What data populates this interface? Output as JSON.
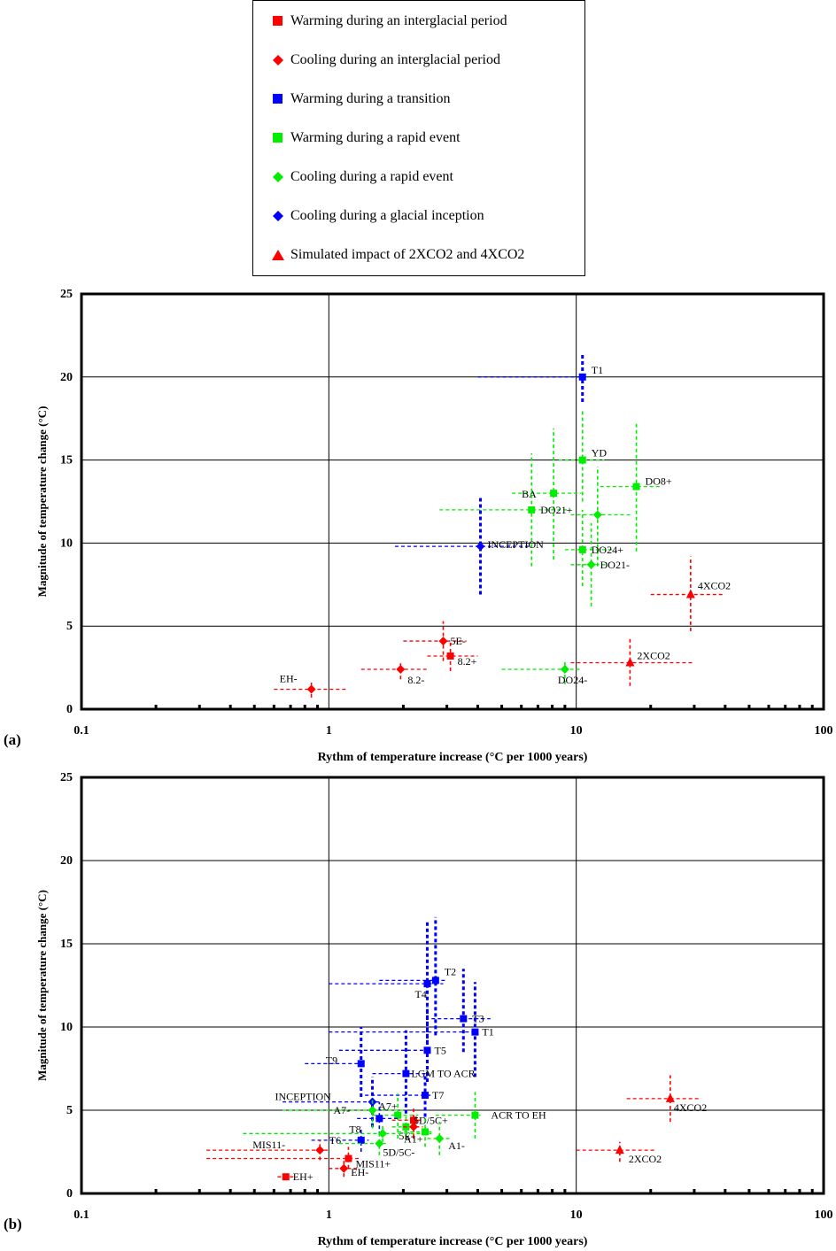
{
  "legend": {
    "items": [
      {
        "label": "Warming during an interglacial period",
        "marker": "square",
        "color": "#ff0000"
      },
      {
        "label": "Cooling during an interglacial period",
        "marker": "diamond",
        "color": "#ff0000"
      },
      {
        "label": "Warming during a transition",
        "marker": "square",
        "color": "#0000ff"
      },
      {
        "label": "Warming during a rapid event",
        "marker": "square",
        "color": "#00ee00"
      },
      {
        "label": "Cooling during a rapid event",
        "marker": "diamond",
        "color": "#00ee00"
      },
      {
        "label": "Cooling during a glacial inception",
        "marker": "diamond",
        "color": "#0000ff"
      },
      {
        "label": "Simulated impact of 2XCO2 and 4XCO2",
        "marker": "triangle",
        "color": "#ff0000"
      }
    ]
  },
  "colors": {
    "red": "#ff0000",
    "blue": "#0000ff",
    "green": "#00ee00"
  },
  "chart_data": [
    {
      "type": "scatter",
      "panel_label": "(a)",
      "xlabel": "Rythm of temperature increase (°C per 1000 years)",
      "ylabel": "Magnitude of temperature change (°C)",
      "xscale": "log",
      "xlim": [
        0.1,
        100
      ],
      "ylim": [
        0,
        25
      ],
      "xticks": [
        "0.1",
        "1",
        "10",
        "100"
      ],
      "yticks": [
        "0",
        "5",
        "10",
        "15",
        "20",
        "25"
      ],
      "grid": true,
      "points": [
        {
          "label": "T1",
          "x": 10.6,
          "y": 20,
          "color": "blue",
          "marker": "square",
          "xerr": [
            4.0,
            10.7
          ],
          "yerr": [
            18.5,
            21.4
          ]
        },
        {
          "label": "YD",
          "x": 10.6,
          "y": 15,
          "color": "green",
          "marker": "square",
          "xerr": [
            8.5,
            13
          ],
          "yerr": [
            12.5,
            18
          ]
        },
        {
          "label": "DO8+",
          "x": 17.5,
          "y": 13.4,
          "color": "green",
          "marker": "square",
          "xerr": [
            12.5,
            22
          ],
          "yerr": [
            9.5,
            17.3
          ]
        },
        {
          "label": "BA",
          "x": 8.1,
          "y": 13,
          "color": "green",
          "marker": "square",
          "xerr": [
            5.5,
            10.5
          ],
          "yerr": [
            9,
            16.9
          ]
        },
        {
          "label": "",
          "x": 12.2,
          "y": 11.7,
          "color": "green",
          "marker": "diamond",
          "xerr": [
            9.5,
            16.5
          ],
          "yerr": [
            8.6,
            14.6
          ]
        },
        {
          "label": "DO21+",
          "x": 6.6,
          "y": 12,
          "color": "green",
          "marker": "square",
          "xerr": [
            2.8,
            9.5
          ],
          "yerr": [
            8.6,
            15.4
          ]
        },
        {
          "label": "INCEPTION",
          "x": 4.1,
          "y": 9.8,
          "color": "blue",
          "marker": "diamond",
          "xerr": [
            1.85,
            6.5
          ],
          "yerr": [
            6.9,
            12.8
          ]
        },
        {
          "label": "DO24+",
          "x": 10.6,
          "y": 9.6,
          "color": "green",
          "marker": "square",
          "xerr": [
            9.0,
            14.2
          ],
          "yerr": [
            7.4,
            12
          ]
        },
        {
          "label": "DO21-",
          "x": 11.5,
          "y": 8.7,
          "color": "green",
          "marker": "diamond",
          "xerr": [
            9.5,
            13.2
          ],
          "yerr": [
            6.2,
            11.2
          ]
        },
        {
          "label": "4XCO2",
          "x": 29,
          "y": 6.9,
          "color": "red",
          "marker": "triangle",
          "xerr": [
            20,
            40
          ],
          "yerr": [
            4.7,
            9.2
          ]
        },
        {
          "label": "5E-",
          "x": 2.9,
          "y": 4.1,
          "color": "red",
          "marker": "diamond",
          "xerr": [
            2.0,
            3.6
          ],
          "yerr": [
            2.9,
            5.3
          ]
        },
        {
          "label": "8.2+",
          "x": 3.1,
          "y": 3.2,
          "color": "red",
          "marker": "square",
          "xerr": [
            2.5,
            4.0
          ],
          "yerr": [
            2.3,
            4.1
          ]
        },
        {
          "label": "2XCO2",
          "x": 16.5,
          "y": 2.8,
          "color": "red",
          "marker": "triangle",
          "xerr": [
            9.5,
            30
          ],
          "yerr": [
            1.4,
            4.3
          ]
        },
        {
          "label": "8.2-",
          "x": 1.95,
          "y": 2.4,
          "color": "red",
          "marker": "diamond",
          "xerr": [
            1.35,
            2.5
          ],
          "yerr": [
            1.8,
            2.9
          ]
        },
        {
          "label": "DO24-",
          "x": 9.0,
          "y": 2.4,
          "color": "green",
          "marker": "diamond",
          "xerr": [
            5.0,
            10.5
          ],
          "yerr": [
            1.5,
            3.0
          ]
        },
        {
          "label": "EH-",
          "x": 0.85,
          "y": 1.2,
          "color": "red",
          "marker": "diamond",
          "xerr": [
            0.6,
            1.2
          ],
          "yerr": [
            0.7,
            1.6
          ]
        }
      ]
    },
    {
      "type": "scatter",
      "panel_label": "(b)",
      "xlabel": "Rythm of temperature increase (°C per 1000 years)",
      "ylabel": "Magnitude of temperature change (°C)",
      "xscale": "log",
      "xlim": [
        0.1,
        100
      ],
      "ylim": [
        0,
        25
      ],
      "xticks": [
        "0.1",
        "1",
        "10",
        "100"
      ],
      "yticks": [
        "0",
        "5",
        "10",
        "15",
        "20",
        "25"
      ],
      "grid": true,
      "points": [
        {
          "label": "T2",
          "x": 2.7,
          "y": 12.8,
          "color": "blue",
          "marker": "square",
          "xerr": [
            1.6,
            3.0
          ],
          "yerr": [
            9.5,
            16.6
          ]
        },
        {
          "label": "T4",
          "x": 2.5,
          "y": 12.6,
          "color": "blue",
          "marker": "square",
          "xerr": [
            1.0,
            2.9
          ],
          "yerr": [
            9.0,
            16.3
          ]
        },
        {
          "label": "T3",
          "x": 3.5,
          "y": 10.5,
          "color": "blue",
          "marker": "square",
          "xerr": [
            2.6,
            4.5
          ],
          "yerr": [
            8.5,
            13.5
          ]
        },
        {
          "label": "T1",
          "x": 3.9,
          "y": 9.7,
          "color": "blue",
          "marker": "square",
          "xerr": [
            1.0,
            4.0
          ],
          "yerr": [
            7.0,
            12.7
          ]
        },
        {
          "label": "T5",
          "x": 2.5,
          "y": 8.6,
          "color": "blue",
          "marker": "square",
          "xerr": [
            1.1,
            2.6
          ],
          "yerr": [
            6.7,
            11.2
          ]
        },
        {
          "label": "T9",
          "x": 1.35,
          "y": 7.8,
          "color": "blue",
          "marker": "square",
          "xerr": [
            0.8,
            1.4
          ],
          "yerr": [
            5.8,
            10.0
          ]
        },
        {
          "label": "LGM TO ACR",
          "x": 2.05,
          "y": 7.2,
          "color": "blue",
          "marker": "square",
          "xerr": [
            1.5,
            2.5
          ],
          "yerr": [
            4.8,
            9.8
          ]
        },
        {
          "label": "T7",
          "x": 2.45,
          "y": 5.9,
          "color": "blue",
          "marker": "square",
          "xerr": [
            1.4,
            2.6
          ],
          "yerr": [
            4.6,
            7.2
          ]
        },
        {
          "label": "INCEPTION",
          "x": 1.5,
          "y": 5.5,
          "color": "blue",
          "marker": "diamond",
          "xerr": [
            0.65,
            1.6
          ],
          "yerr": [
            4.0,
            7.0
          ]
        },
        {
          "label": "A7+",
          "x": 1.9,
          "y": 4.7,
          "color": "green",
          "marker": "square",
          "xerr": [
            1.5,
            2.3
          ],
          "yerr": [
            3.3,
            6.0
          ]
        },
        {
          "label": "A7-",
          "x": 1.5,
          "y": 5.0,
          "color": "green",
          "marker": "diamond",
          "xerr": [
            0.65,
            2.0
          ],
          "yerr": [
            3.9,
            5.7
          ]
        },
        {
          "label": "5D/5C+",
          "x": 2.2,
          "y": 4.4,
          "color": "red",
          "marker": "square",
          "xerr": [
            1.8,
            2.4
          ],
          "yerr": [
            3.4,
            5.2
          ]
        },
        {
          "label": "T8",
          "x": 1.6,
          "y": 4.5,
          "color": "blue",
          "marker": "square",
          "xerr": [
            1.3,
            1.9
          ],
          "yerr": [
            3.5,
            5.5
          ]
        },
        {
          "label": "ACR TO EH",
          "x": 3.9,
          "y": 4.7,
          "color": "green",
          "marker": "square",
          "xerr": [
            2.7,
            4.1
          ],
          "yerr": [
            3.3,
            6.1
          ]
        },
        {
          "label": "5E-",
          "x": 2.05,
          "y": 4.0,
          "color": "green",
          "marker": "square",
          "xerr": [
            1.8,
            2.3
          ],
          "yerr": [
            3.3,
            4.7
          ]
        },
        {
          "label": "",
          "x": 2.2,
          "y": 4.0,
          "color": "red",
          "marker": "diamond",
          "xerr": [
            2.0,
            2.4
          ],
          "yerr": [
            3.3,
            4.7
          ]
        },
        {
          "label": "A1+",
          "x": 2.45,
          "y": 3.7,
          "color": "green",
          "marker": "square",
          "xerr": [
            1.9,
            2.6
          ],
          "yerr": [
            2.8,
            4.6
          ]
        },
        {
          "label": "",
          "x": 1.65,
          "y": 3.6,
          "color": "green",
          "marker": "diamond",
          "xerr": [
            0.45,
            2.6
          ],
          "yerr": [
            3.1,
            4.1
          ]
        },
        {
          "label": "A1-",
          "x": 2.8,
          "y": 3.3,
          "color": "green",
          "marker": "diamond",
          "xerr": [
            2.5,
            3.1
          ],
          "yerr": [
            2.3,
            4.3
          ]
        },
        {
          "label": "T6",
          "x": 1.35,
          "y": 3.2,
          "color": "blue",
          "marker": "square",
          "xerr": [
            0.85,
            1.45
          ],
          "yerr": [
            2.5,
            4.0
          ]
        },
        {
          "label": "5D/5C-",
          "x": 1.6,
          "y": 3.0,
          "color": "green",
          "marker": "diamond",
          "xerr": [
            1.1,
            1.7
          ],
          "yerr": [
            2.3,
            3.6
          ]
        },
        {
          "label": "MIS11-",
          "x": 0.92,
          "y": 2.6,
          "color": "red",
          "marker": "diamond",
          "xerr": [
            0.32,
            1.0
          ],
          "yerr": [
            2.0,
            3.2
          ]
        },
        {
          "label": "MIS11+",
          "x": 1.2,
          "y": 2.1,
          "color": "red",
          "marker": "square",
          "xerr": [
            0.32,
            1.35
          ],
          "yerr": [
            1.5,
            2.8
          ]
        },
        {
          "label": "EH-",
          "x": 1.15,
          "y": 1.5,
          "color": "red",
          "marker": "diamond",
          "xerr": [
            1.0,
            1.3
          ],
          "yerr": [
            1.0,
            2.0
          ]
        },
        {
          "label": "EH+",
          "x": 0.67,
          "y": 1.0,
          "color": "red",
          "marker": "square",
          "xerr": [
            0.62,
            0.72
          ],
          "yerr": [
            0.8,
            1.2
          ]
        },
        {
          "label": "4XCO2",
          "x": 24,
          "y": 5.7,
          "color": "red",
          "marker": "triangle",
          "xerr": [
            16,
            32
          ],
          "yerr": [
            4.3,
            7.1
          ]
        },
        {
          "label": "2XCO2",
          "x": 15,
          "y": 2.6,
          "color": "red",
          "marker": "triangle",
          "xerr": [
            10,
            21
          ],
          "yerr": [
            1.9,
            3.1
          ]
        }
      ]
    }
  ]
}
